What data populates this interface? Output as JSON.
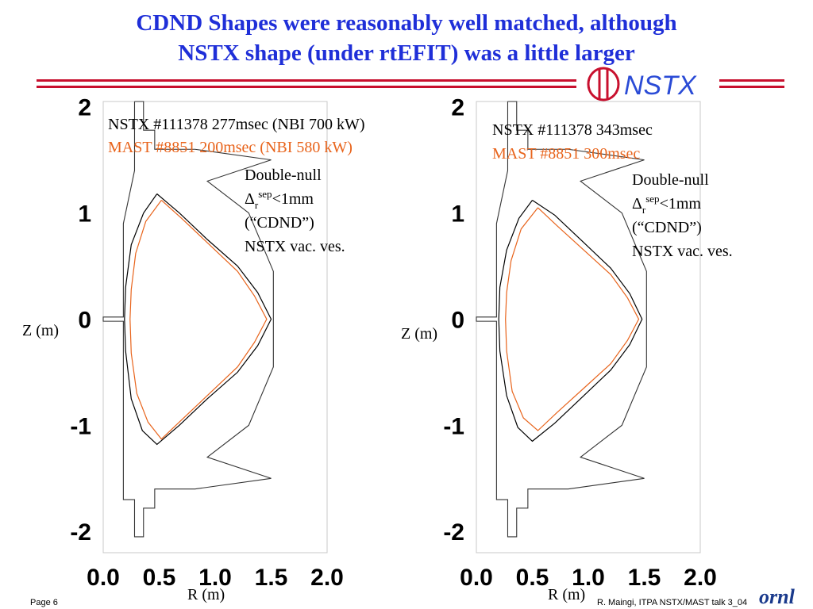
{
  "title": {
    "line1": "CDND Shapes were reasonably well matched, although",
    "line2": "NSTX shape (under rtEFIT) was a little larger"
  },
  "logo": {
    "text": "NSTX",
    "icon": "nstx-logo-icon"
  },
  "colors": {
    "title": "#1f2fd8",
    "rule": "#c8102e",
    "nstx": "#000000",
    "mast": "#e8641c",
    "vessel": "#333333"
  },
  "chart_data": [
    {
      "type": "line",
      "xlabel": "R (m)",
      "ylabel": "Z (m)",
      "xticks": [
        "0.0",
        "0.5",
        "1.0",
        "1.5",
        "2.0"
      ],
      "yticks": [
        "2",
        "1",
        "0",
        "-1",
        "-2"
      ],
      "xlim": [
        0.0,
        2.0
      ],
      "ylim": [
        -2.2,
        2.05
      ],
      "legend": {
        "nstx": "NSTX #111378 277msec (NBI 700 kW)",
        "mast": "MAST #8851 200msec (NBI 580 kW)"
      },
      "annotation": {
        "line1": "Double-null",
        "delta": "Δ",
        "sub": "r",
        "sup": "sep",
        "rest": "<1mm",
        "line3": "(“CDND”)",
        "line4": "NSTX vac. ves."
      },
      "series": [
        {
          "name": "NSTX #111378 277msec (NBI 700 kW)",
          "points": [
            [
              0.48,
              1.18
            ],
            [
              0.36,
              1.0
            ],
            [
              0.25,
              0.7
            ],
            [
              0.2,
              0.3
            ],
            [
              0.19,
              0.0
            ],
            [
              0.2,
              -0.3
            ],
            [
              0.25,
              -0.75
            ],
            [
              0.35,
              -1.05
            ],
            [
              0.48,
              -1.18
            ],
            [
              0.68,
              -1.0
            ],
            [
              0.93,
              -0.75
            ],
            [
              1.2,
              -0.5
            ],
            [
              1.38,
              -0.25
            ],
            [
              1.5,
              0.0
            ],
            [
              1.38,
              0.25
            ],
            [
              1.2,
              0.5
            ],
            [
              0.93,
              0.75
            ],
            [
              0.68,
              1.0
            ],
            [
              0.48,
              1.18
            ]
          ]
        },
        {
          "name": "MAST #8851 200msec (NBI 580 kW)",
          "points": [
            [
              0.52,
              1.12
            ],
            [
              0.38,
              0.92
            ],
            [
              0.29,
              0.62
            ],
            [
              0.25,
              0.28
            ],
            [
              0.24,
              0.0
            ],
            [
              0.25,
              -0.32
            ],
            [
              0.3,
              -0.7
            ],
            [
              0.4,
              -0.97
            ],
            [
              0.52,
              -1.13
            ],
            [
              0.7,
              -0.95
            ],
            [
              0.95,
              -0.7
            ],
            [
              1.2,
              -0.45
            ],
            [
              1.35,
              -0.22
            ],
            [
              1.46,
              0.0
            ],
            [
              1.35,
              0.22
            ],
            [
              1.2,
              0.45
            ],
            [
              0.95,
              0.7
            ],
            [
              0.7,
              0.95
            ],
            [
              0.52,
              1.12
            ]
          ]
        }
      ]
    },
    {
      "type": "line",
      "xlabel": "R (m)",
      "ylabel": "Z (m)",
      "xticks": [
        "0.0",
        "0.5",
        "1.0",
        "1.5",
        "2.0"
      ],
      "yticks": [
        "2",
        "1",
        "0",
        "-1",
        "-2"
      ],
      "xlim": [
        0.0,
        2.0
      ],
      "ylim": [
        -2.2,
        2.05
      ],
      "legend": {
        "nstx": "NSTX #111378 343msec",
        "mast": "MAST #8851 300msec"
      },
      "annotation": {
        "line1": "Double-null",
        "delta": "Δ",
        "sub": "r",
        "sup": "sep",
        "rest": "<1mm",
        "line3": "(“CDND”)",
        "line4": "NSTX vac. ves."
      },
      "series": [
        {
          "name": "NSTX #111378 343msec",
          "points": [
            [
              0.5,
              1.12
            ],
            [
              0.38,
              0.95
            ],
            [
              0.27,
              0.65
            ],
            [
              0.21,
              0.3
            ],
            [
              0.2,
              0.0
            ],
            [
              0.21,
              -0.3
            ],
            [
              0.27,
              -0.72
            ],
            [
              0.37,
              -1.02
            ],
            [
              0.5,
              -1.15
            ],
            [
              0.7,
              -0.98
            ],
            [
              0.95,
              -0.73
            ],
            [
              1.2,
              -0.48
            ],
            [
              1.37,
              -0.24
            ],
            [
              1.48,
              0.0
            ],
            [
              1.37,
              0.24
            ],
            [
              1.2,
              0.48
            ],
            [
              0.95,
              0.73
            ],
            [
              0.7,
              0.98
            ],
            [
              0.5,
              1.12
            ]
          ]
        },
        {
          "name": "MAST #8851 300msec",
          "points": [
            [
              0.55,
              1.05
            ],
            [
              0.4,
              0.85
            ],
            [
              0.31,
              0.55
            ],
            [
              0.27,
              0.25
            ],
            [
              0.26,
              0.0
            ],
            [
              0.27,
              -0.3
            ],
            [
              0.32,
              -0.68
            ],
            [
              0.42,
              -0.93
            ],
            [
              0.55,
              -1.05
            ],
            [
              0.72,
              -0.88
            ],
            [
              0.96,
              -0.65
            ],
            [
              1.2,
              -0.42
            ],
            [
              1.35,
              -0.2
            ],
            [
              1.45,
              0.0
            ],
            [
              1.35,
              0.2
            ],
            [
              1.2,
              0.42
            ],
            [
              0.96,
              0.65
            ],
            [
              0.72,
              0.88
            ],
            [
              0.55,
              1.05
            ]
          ]
        }
      ]
    }
  ],
  "footer": {
    "page": "Page 6",
    "credit": "R. Maingi, ITPA NSTX/MAST talk 3_04",
    "logo": "ornl"
  }
}
